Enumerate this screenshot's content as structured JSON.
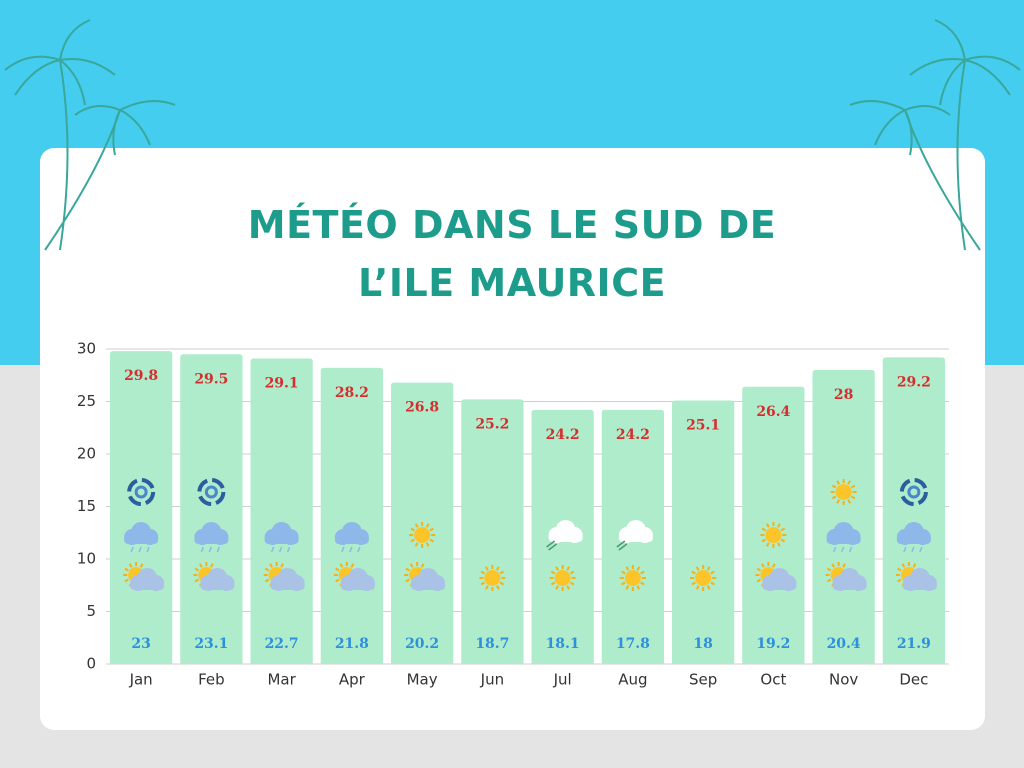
{
  "chart_data": {
    "type": "bar",
    "title": "MÉTÉO DANS LE SUD DE L’ILE MAURICE",
    "categories": [
      "Jan",
      "Feb",
      "Mar",
      "Apr",
      "May",
      "Jun",
      "Jul",
      "Aug",
      "Sep",
      "Oct",
      "Nov",
      "Dec"
    ],
    "series": [
      {
        "color": "#aeeccb",
        "label_color": "#d62e2e",
        "values": [
          29.8,
          29.5,
          29.1,
          28.2,
          26.8,
          25.2,
          24.2,
          24.2,
          25.1,
          26.4,
          28,
          29.2
        ]
      },
      {
        "color": "#2d8fe0",
        "values": [
          23,
          23.1,
          22.7,
          21.8,
          20.2,
          18.7,
          18.1,
          17.8,
          18,
          19.2,
          20.4,
          21.9
        ]
      }
    ],
    "ylim": [
      0,
      30
    ],
    "yticks": [
      0,
      5,
      10,
      15,
      20,
      25,
      30
    ],
    "grid": true
  }
}
